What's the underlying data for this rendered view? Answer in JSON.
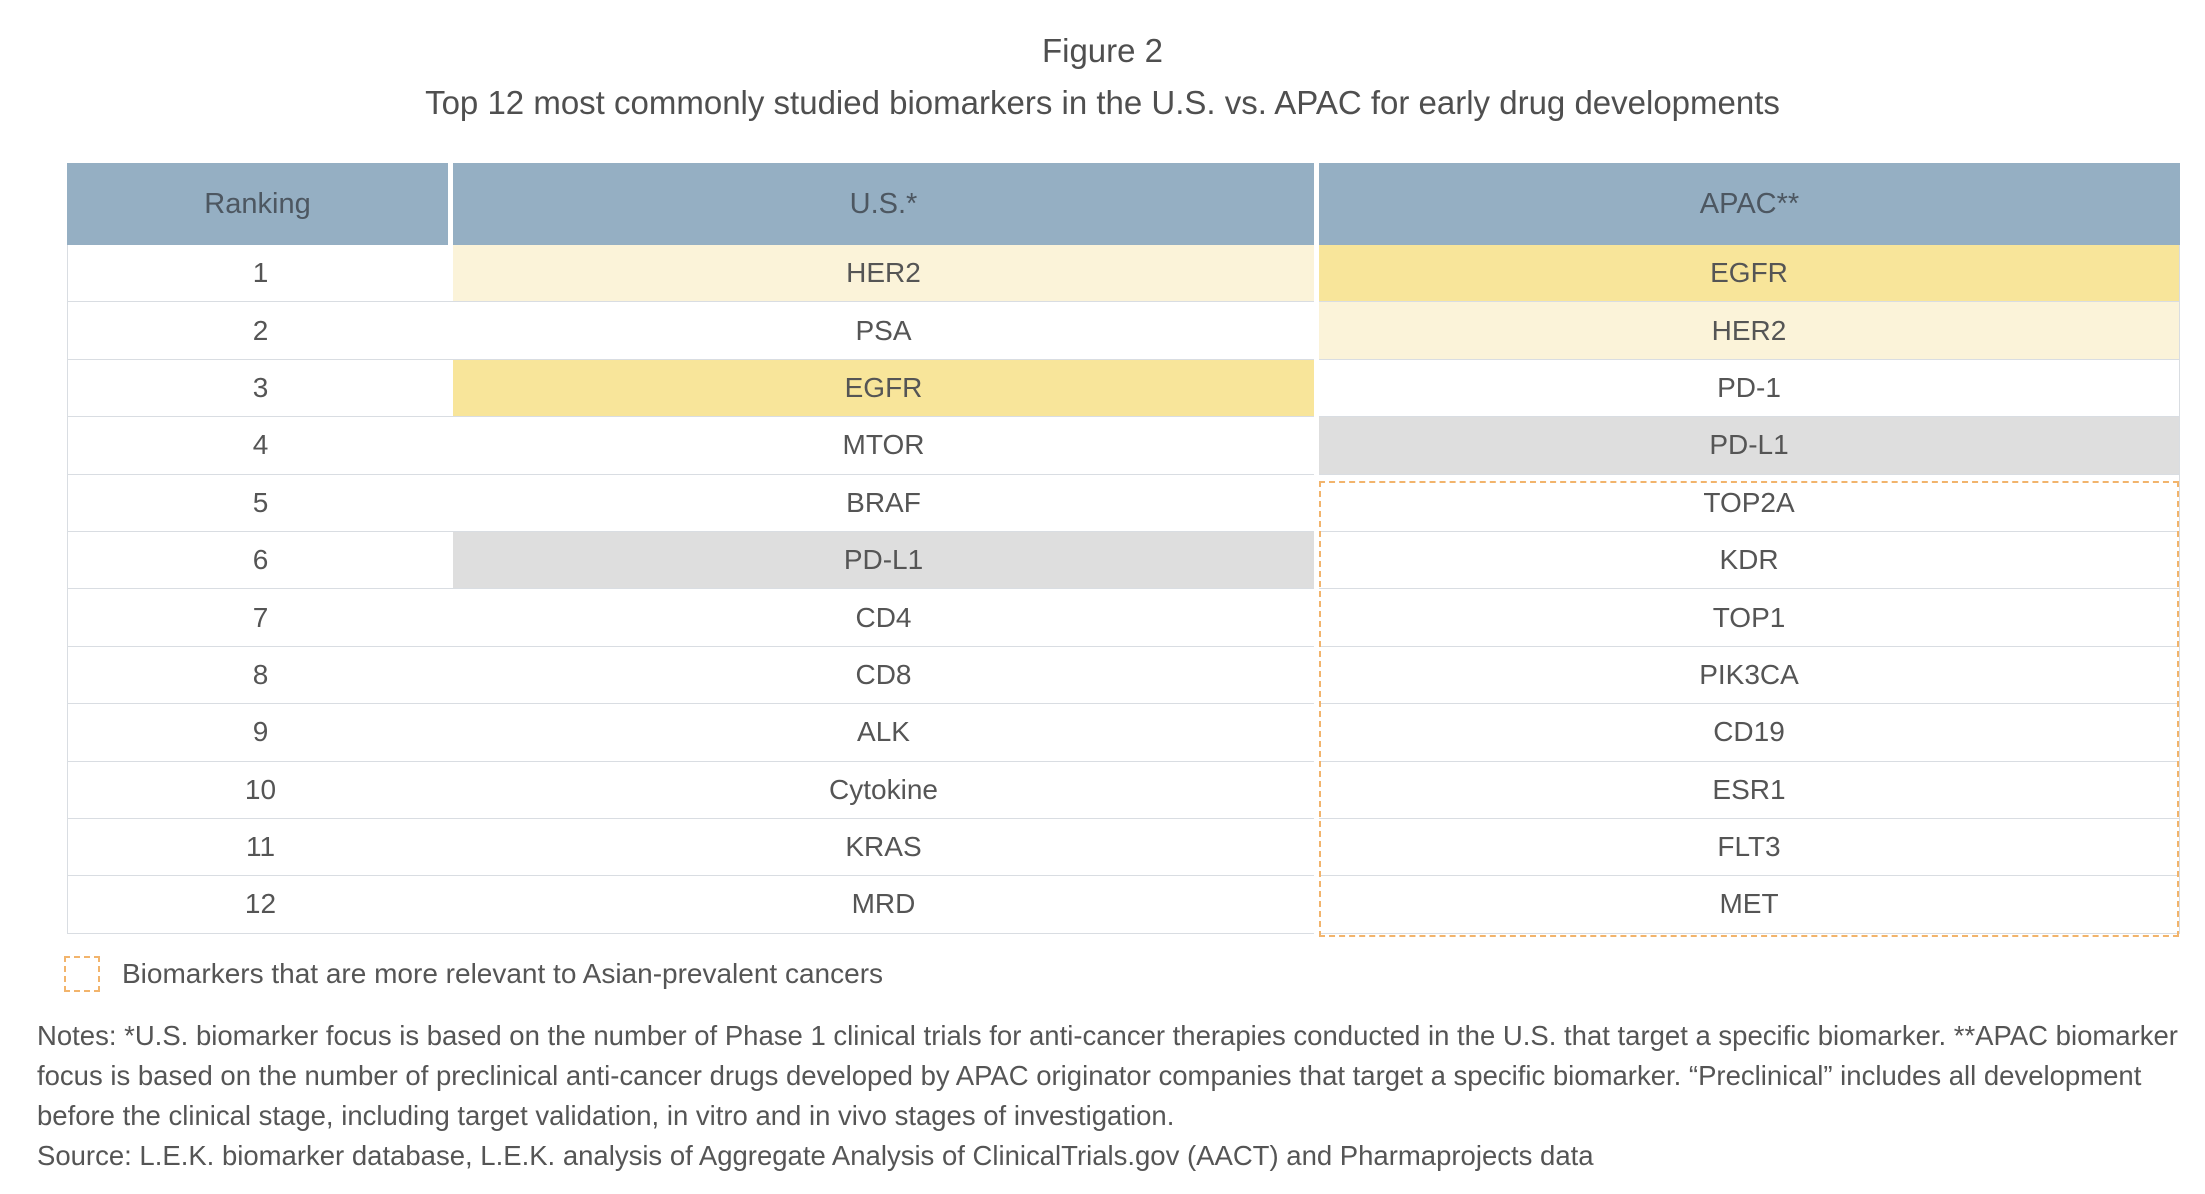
{
  "figure_label": "Figure 2",
  "title": "Top 12 most commonly studied biomarkers in the U.S. vs. APAC for early drug developments",
  "colors": {
    "header_bg": "#95afc3",
    "yellow_highlight": "#f8e59a",
    "cream_highlight": "#fbf3d9",
    "gray_highlight": "#dedede",
    "dashed_border": "#f2b46c"
  },
  "chart_data": {
    "type": "table",
    "title": "Top 12 most commonly studied biomarkers in the U.S. vs. APAC for early drug developments",
    "columns": [
      "Ranking",
      "U.S.*",
      "APAC**"
    ],
    "rows": [
      {
        "rank": "1",
        "us": "HER2",
        "apac": "EGFR",
        "us_hl": "cream",
        "apac_hl": "yellow"
      },
      {
        "rank": "2",
        "us": "PSA",
        "apac": "HER2",
        "us_hl": "",
        "apac_hl": "cream"
      },
      {
        "rank": "3",
        "us": "EGFR",
        "apac": "PD-1",
        "us_hl": "yellow",
        "apac_hl": ""
      },
      {
        "rank": "4",
        "us": "MTOR",
        "apac": "PD-L1",
        "us_hl": "",
        "apac_hl": "gray"
      },
      {
        "rank": "5",
        "us": "BRAF",
        "apac": "TOP2A",
        "us_hl": "",
        "apac_hl": ""
      },
      {
        "rank": "6",
        "us": "PD-L1",
        "apac": "KDR",
        "us_hl": "gray",
        "apac_hl": ""
      },
      {
        "rank": "7",
        "us": "CD4",
        "apac": "TOP1",
        "us_hl": "",
        "apac_hl": ""
      },
      {
        "rank": "8",
        "us": "CD8",
        "apac": "PIK3CA",
        "us_hl": "",
        "apac_hl": ""
      },
      {
        "rank": "9",
        "us": "ALK",
        "apac": "CD19",
        "us_hl": "",
        "apac_hl": ""
      },
      {
        "rank": "10",
        "us": "Cytokine",
        "apac": "ESR1",
        "us_hl": "",
        "apac_hl": ""
      },
      {
        "rank": "11",
        "us": "KRAS",
        "apac": "FLT3",
        "us_hl": "",
        "apac_hl": ""
      },
      {
        "rank": "12",
        "us": "MRD",
        "apac": "MET",
        "us_hl": "",
        "apac_hl": ""
      }
    ],
    "dashed_group": {
      "column": "APAC**",
      "from_rank": 5,
      "to_rank": 12
    }
  },
  "legend": {
    "text": "Biomarkers that are more relevant to Asian-prevalent cancers"
  },
  "notes": {
    "text": "Notes: *U.S. biomarker focus is based on the number of Phase 1 clinical trials for anti-cancer therapies conducted in the U.S. that target a specific biomarker. **APAC biomarker focus is based on the number of preclinical anti-cancer drugs developed by APAC originator companies that target a specific biomarker. “Preclinical” includes all development before the clinical stage, including target validation, in vitro and in vivo stages of investigation.",
    "source": "Source: L.E.K. biomarker database, L.E.K. analysis of Aggregate Analysis of ClinicalTrials.gov (AACT) and Pharmaprojects data"
  }
}
